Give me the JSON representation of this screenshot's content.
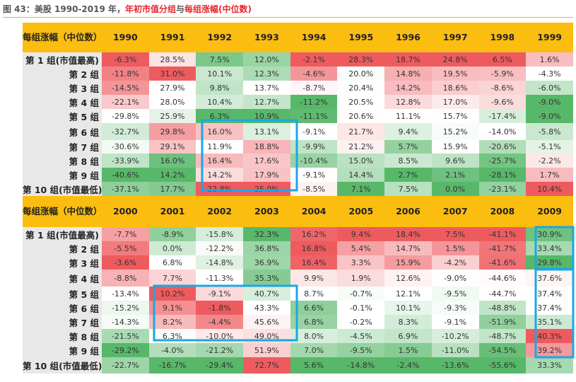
{
  "title": {
    "prefix": "图 43：美股 1990-2019 年，",
    "highlight": "年初市值分组",
    "mid": "与",
    "highlight2": "每组涨幅(中位数)"
  },
  "colors": {
    "header": "#fbbd10",
    "label_bg": "#e8e8e8",
    "pos": "#ee5b5f",
    "neg": "#58b86a",
    "box": "#1aa7e6"
  },
  "tables": [
    {
      "header_label": "每组涨幅（中位数）",
      "years": [
        "1990",
        "1991",
        "1992",
        "1993",
        "1994",
        "1995",
        "1996",
        "1997",
        "1998",
        "1999"
      ],
      "rows": [
        {
          "label": "第 1 组(市值最高)",
          "values": [
            "-6.3%",
            "28.5%",
            "7.5%",
            "12.0%",
            "-2.1%",
            "28.3%",
            "18.7%",
            "24.8%",
            "6.5%",
            "1.6%"
          ]
        },
        {
          "label": "第 2 组",
          "values": [
            "-11.8%",
            "31.0%",
            "10.1%",
            "12.3%",
            "-4.6%",
            "20.0%",
            "14.8%",
            "19.5%",
            "-5.9%",
            "-4.3%"
          ]
        },
        {
          "label": "第 3 组",
          "values": [
            "-14.5%",
            "27.9%",
            "9.8%",
            "13.7%",
            "-8.7%",
            "20.4%",
            "14.2%",
            "18.6%",
            "-8.6%",
            "-6.0%"
          ]
        },
        {
          "label": "第 4 组",
          "values": [
            "-22.1%",
            "28.0%",
            "10.4%",
            "12.7%",
            "-11.2%",
            "20.5%",
            "12.8%",
            "17.0%",
            "-9.6%",
            "-9.0%"
          ]
        },
        {
          "label": "第 5 组",
          "values": [
            "-29.8%",
            "25.9%",
            "6.3%",
            "10.9%",
            "-11.1%",
            "20.6%",
            "11.1%",
            "15.7%",
            "-17.4%",
            "-9.0%"
          ]
        },
        {
          "label": "第 6 组",
          "values": [
            "-32.7%",
            "29.8%",
            "16.0%",
            "13.1%",
            "-9.1%",
            "21.7%",
            "9.4%",
            "15.2%",
            "-14.0%",
            "-5.8%"
          ]
        },
        {
          "label": "第 7 组",
          "values": [
            "-30.6%",
            "29.1%",
            "11.9%",
            "18.8%",
            "-9.9%",
            "21.2%",
            "5.7%",
            "15.9%",
            "-20.6%",
            "-5.1%"
          ]
        },
        {
          "label": "第 8 组",
          "values": [
            "-33.9%",
            "16.0%",
            "16.4%",
            "17.6%",
            "-10.4%",
            "15.0%",
            "8.5%",
            "9.6%",
            "-25.7%",
            "-2.2%"
          ]
        },
        {
          "label": "第 9 组",
          "values": [
            "-40.6%",
            "14.2%",
            "14.2%",
            "17.9%",
            "-9.1%",
            "14.4%",
            "2.7%",
            "2.1%",
            "-28.1%",
            "1.7%"
          ]
        },
        {
          "label": "第 10 组(市值最低)",
          "values": [
            "-37.1%",
            "17.7%",
            "22.8%",
            "25.0%",
            "-8.5%",
            "7.1%",
            "7.5%",
            "0.0%",
            "-23.1%",
            "10.4%"
          ]
        }
      ]
    },
    {
      "header_label": "每组涨幅（中位数）",
      "years": [
        "2000",
        "2001",
        "2002",
        "2003",
        "2004",
        "2005",
        "2006",
        "2007",
        "2008",
        "2009"
      ],
      "rows": [
        {
          "label": "第 1 组(市值最高)",
          "values": [
            "-7.7%",
            "-8.9%",
            "-15.8%",
            "32.3%",
            "16.2%",
            "9.4%",
            "18.4%",
            "7.5%",
            "-41.1%",
            "30.9%"
          ]
        },
        {
          "label": "第 2 组",
          "values": [
            "-5.5%",
            "0.0%",
            "-12.2%",
            "36.8%",
            "16.8%",
            "5.4%",
            "14.7%",
            "1.5%",
            "-41.7%",
            "33.4%"
          ]
        },
        {
          "label": "第 3 组",
          "values": [
            "-3.6%",
            "6.8%",
            "-14.8%",
            "36.9%",
            "16.4%",
            "3.3%",
            "15.9%",
            "-4.2%",
            "-41.6%",
            "29.8%"
          ]
        },
        {
          "label": "第 4 组",
          "values": [
            "-8.8%",
            "7.7%",
            "-11.3%",
            "35.3%",
            "9.9%",
            "1.9%",
            "12.6%",
            "-9.0%",
            "-44.6%",
            "37.6%"
          ]
        },
        {
          "label": "第 5 组",
          "values": [
            "-13.4%",
            "10.2%",
            "-9.1%",
            "40.7%",
            "8.7%",
            "-0.7%",
            "12.1%",
            "-9.5%",
            "-44.7%",
            "37.4%"
          ]
        },
        {
          "label": "第 6 组",
          "values": [
            "-15.2%",
            "9.1%",
            "-1.8%",
            "43.3%",
            "6.6%",
            "-0.1%",
            "10.1%",
            "-9.3%",
            "-48.8%",
            "37.4%"
          ]
        },
        {
          "label": "第 7 组",
          "values": [
            "-14.3%",
            "8.2%",
            "-4.4%",
            "45.6%",
            "6.8%",
            "-0.2%",
            "8.3%",
            "-9.1%",
            "-51.9%",
            "35.1%"
          ]
        },
        {
          "label": "第 8 组",
          "values": [
            "-21.5%",
            "6.3%",
            "-10.0%",
            "49.0%",
            "8.0%",
            "-4.5%",
            "6.9%",
            "-10.2%",
            "-48.7%",
            "40.3%"
          ]
        },
        {
          "label": "第 9 组",
          "values": [
            "-29.2%",
            "-4.0%",
            "-21.2%",
            "51.9%",
            "7.0%",
            "-9.5%",
            "1.5%",
            "-11.0%",
            "-54.5%",
            "39.2%"
          ]
        },
        {
          "label": "第 10 组(市值最低)",
          "values": [
            "-22.7%",
            "-16.7%",
            "-29.4%",
            "72.7%",
            "5.6%",
            "-14.8%",
            "-2.4%",
            "-13.6%",
            "-55.6%",
            "33.3%"
          ]
        }
      ]
    }
  ]
}
